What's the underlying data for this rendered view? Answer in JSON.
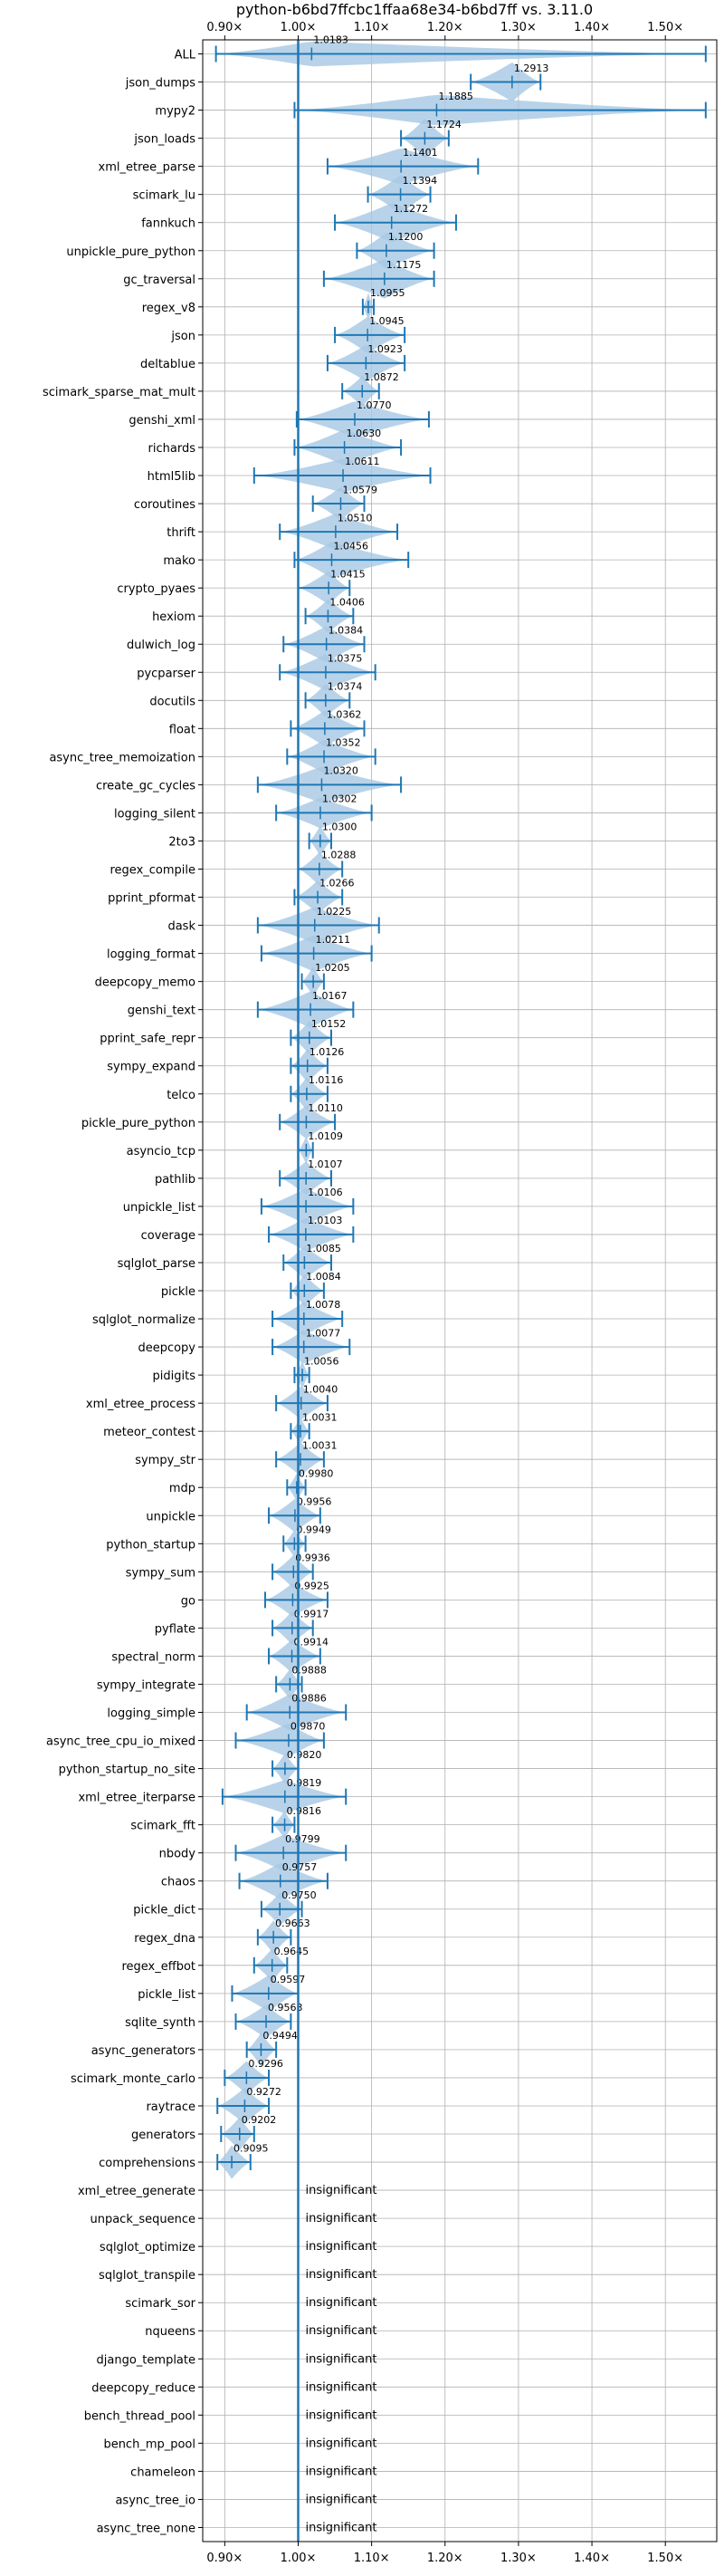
{
  "chart_data": {
    "type": "violin",
    "title": "python-b6bd7ffcbc1ffaa68e34-b6bd7ff vs. 3.11.0",
    "xlim": [
      0.87,
      1.57
    ],
    "x_ticks": [
      0.9,
      1.0,
      1.1,
      1.2,
      1.3,
      1.4,
      1.5
    ],
    "x_tick_labels": [
      "0.90×",
      "1.00×",
      "1.10×",
      "1.20×",
      "1.30×",
      "1.40×",
      "1.50×"
    ],
    "reference_line": 1.0,
    "grid": true,
    "colors": {
      "violin": "#a6c8e4",
      "line": "#1f77b4",
      "grid": "#b0b0b0",
      "reference": "#1f77b4"
    },
    "insignificant_label": "insignificant",
    "benchmarks": [
      {
        "name": "ALL",
        "value": 1.0183,
        "label": "1.0183",
        "min": 0.888,
        "max": 1.555,
        "width": 0.45
      },
      {
        "name": "json_dumps",
        "value": 1.2913,
        "label": "1.2913",
        "min": 1.235,
        "max": 1.33,
        "width": 0.7
      },
      {
        "name": "mypy2",
        "value": 1.1885,
        "label": "1.1885",
        "min": 0.995,
        "max": 1.555,
        "width": 0.55
      },
      {
        "name": "json_loads",
        "value": 1.1724,
        "label": "1.1724",
        "min": 1.14,
        "max": 1.205,
        "width": 0.7
      },
      {
        "name": "xml_etree_parse",
        "value": 1.1401,
        "label": "1.1401",
        "min": 1.04,
        "max": 1.245,
        "width": 0.65
      },
      {
        "name": "scimark_lu",
        "value": 1.1394,
        "label": "1.1394",
        "min": 1.095,
        "max": 1.18,
        "width": 0.7
      },
      {
        "name": "fannkuch",
        "value": 1.1272,
        "label": "1.1272",
        "min": 1.05,
        "max": 1.215,
        "width": 0.7
      },
      {
        "name": "unpickle_pure_python",
        "value": 1.12,
        "label": "1.1200",
        "min": 1.08,
        "max": 1.185,
        "width": 0.65
      },
      {
        "name": "gc_traversal",
        "value": 1.1175,
        "label": "1.1175",
        "min": 1.035,
        "max": 1.185,
        "width": 0.7
      },
      {
        "name": "regex_v8",
        "value": 1.0955,
        "label": "1.0955",
        "min": 1.088,
        "max": 1.103,
        "width": 0.5
      },
      {
        "name": "json",
        "value": 1.0945,
        "label": "1.0945",
        "min": 1.05,
        "max": 1.145,
        "width": 0.65
      },
      {
        "name": "deltablue",
        "value": 1.0923,
        "label": "1.0923",
        "min": 1.04,
        "max": 1.145,
        "width": 0.65
      },
      {
        "name": "scimark_sparse_mat_mult",
        "value": 1.0872,
        "label": "1.0872",
        "min": 1.06,
        "max": 1.11,
        "width": 0.55
      },
      {
        "name": "genshi_xml",
        "value": 1.077,
        "label": "1.0770",
        "min": 0.998,
        "max": 1.178,
        "width": 0.65
      },
      {
        "name": "richards",
        "value": 1.063,
        "label": "1.0630",
        "min": 0.995,
        "max": 1.14,
        "width": 0.65
      },
      {
        "name": "html5lib",
        "value": 1.0611,
        "label": "1.0611",
        "min": 0.94,
        "max": 1.18,
        "width": 0.6
      },
      {
        "name": "coroutines",
        "value": 1.0579,
        "label": "1.0579",
        "min": 1.02,
        "max": 1.09,
        "width": 0.6
      },
      {
        "name": "thrift",
        "value": 1.051,
        "label": "1.0510",
        "min": 0.975,
        "max": 1.135,
        "width": 0.65
      },
      {
        "name": "mako",
        "value": 1.0456,
        "label": "1.0456",
        "min": 0.995,
        "max": 1.15,
        "width": 0.65
      },
      {
        "name": "crypto_pyaes",
        "value": 1.0415,
        "label": "1.0415",
        "min": 1.0,
        "max": 1.07,
        "width": 0.6
      },
      {
        "name": "hexiom",
        "value": 1.0406,
        "label": "1.0406",
        "min": 1.01,
        "max": 1.075,
        "width": 0.6
      },
      {
        "name": "dulwich_log",
        "value": 1.0384,
        "label": "1.0384",
        "min": 0.98,
        "max": 1.09,
        "width": 0.65
      },
      {
        "name": "pycparser",
        "value": 1.0375,
        "label": "1.0375",
        "min": 0.975,
        "max": 1.105,
        "width": 0.65
      },
      {
        "name": "docutils",
        "value": 1.0374,
        "label": "1.0374",
        "min": 1.01,
        "max": 1.07,
        "width": 0.6
      },
      {
        "name": "float",
        "value": 1.0362,
        "label": "1.0362",
        "min": 0.99,
        "max": 1.09,
        "width": 0.65
      },
      {
        "name": "async_tree_memoization",
        "value": 1.0352,
        "label": "1.0352",
        "min": 0.985,
        "max": 1.105,
        "width": 0.6
      },
      {
        "name": "create_gc_cycles",
        "value": 1.032,
        "label": "1.0320",
        "min": 0.945,
        "max": 1.14,
        "width": 0.65
      },
      {
        "name": "logging_silent",
        "value": 1.0302,
        "label": "1.0302",
        "min": 0.97,
        "max": 1.1,
        "width": 0.55
      },
      {
        "name": "2to3",
        "value": 1.03,
        "label": "1.0300",
        "min": 1.015,
        "max": 1.045,
        "width": 0.55
      },
      {
        "name": "regex_compile",
        "value": 1.0288,
        "label": "1.0288",
        "min": 1.0,
        "max": 1.06,
        "width": 0.6
      },
      {
        "name": "pprint_pformat",
        "value": 1.0266,
        "label": "1.0266",
        "min": 0.995,
        "max": 1.06,
        "width": 0.6
      },
      {
        "name": "dask",
        "value": 1.0225,
        "label": "1.0225",
        "min": 0.945,
        "max": 1.11,
        "width": 0.65
      },
      {
        "name": "logging_format",
        "value": 1.0211,
        "label": "1.0211",
        "min": 0.95,
        "max": 1.1,
        "width": 0.65
      },
      {
        "name": "deepcopy_memo",
        "value": 1.0205,
        "label": "1.0205",
        "min": 1.005,
        "max": 1.035,
        "width": 0.55
      },
      {
        "name": "genshi_text",
        "value": 1.0167,
        "label": "1.0167",
        "min": 0.945,
        "max": 1.075,
        "width": 0.65
      },
      {
        "name": "pprint_safe_repr",
        "value": 1.0152,
        "label": "1.0152",
        "min": 0.99,
        "max": 1.045,
        "width": 0.6
      },
      {
        "name": "sympy_expand",
        "value": 1.0126,
        "label": "1.0126",
        "min": 0.99,
        "max": 1.04,
        "width": 0.6
      },
      {
        "name": "telco",
        "value": 1.0116,
        "label": "1.0116",
        "min": 0.99,
        "max": 1.04,
        "width": 0.6
      },
      {
        "name": "pickle_pure_python",
        "value": 1.011,
        "label": "1.0110",
        "min": 0.975,
        "max": 1.05,
        "width": 0.6
      },
      {
        "name": "asyncio_tcp",
        "value": 1.0109,
        "label": "1.0109",
        "min": 1.0,
        "max": 1.02,
        "width": 0.5
      },
      {
        "name": "pathlib",
        "value": 1.0107,
        "label": "1.0107",
        "min": 0.975,
        "max": 1.045,
        "width": 0.6
      },
      {
        "name": "unpickle_list",
        "value": 1.0106,
        "label": "1.0106",
        "min": 0.95,
        "max": 1.075,
        "width": 0.65
      },
      {
        "name": "coverage",
        "value": 1.0103,
        "label": "1.0103",
        "min": 0.96,
        "max": 1.075,
        "width": 0.6
      },
      {
        "name": "sqlglot_parse",
        "value": 1.0085,
        "label": "1.0085",
        "min": 0.98,
        "max": 1.045,
        "width": 0.6
      },
      {
        "name": "pickle",
        "value": 1.0084,
        "label": "1.0084",
        "min": 0.99,
        "max": 1.035,
        "width": 0.6
      },
      {
        "name": "sqlglot_normalize",
        "value": 1.0078,
        "label": "1.0078",
        "min": 0.965,
        "max": 1.06,
        "width": 0.6
      },
      {
        "name": "deepcopy",
        "value": 1.0077,
        "label": "1.0077",
        "min": 0.965,
        "max": 1.07,
        "width": 0.6
      },
      {
        "name": "pidigits",
        "value": 1.0056,
        "label": "1.0056",
        "min": 0.995,
        "max": 1.015,
        "width": 0.5
      },
      {
        "name": "xml_etree_process",
        "value": 1.004,
        "label": "1.0040",
        "min": 0.97,
        "max": 1.04,
        "width": 0.6
      },
      {
        "name": "meteor_contest",
        "value": 1.0031,
        "label": "1.0031",
        "min": 0.99,
        "max": 1.015,
        "width": 0.5
      },
      {
        "name": "sympy_str",
        "value": 1.0031,
        "label": "1.0031",
        "min": 0.97,
        "max": 1.035,
        "width": 0.6
      },
      {
        "name": "mdp",
        "value": 0.998,
        "label": "0.9980",
        "min": 0.985,
        "max": 1.01,
        "width": 0.5
      },
      {
        "name": "unpickle",
        "value": 0.9956,
        "label": "0.9956",
        "min": 0.96,
        "max": 1.03,
        "width": 0.6
      },
      {
        "name": "python_startup",
        "value": 0.9949,
        "label": "0.9949",
        "min": 0.98,
        "max": 1.01,
        "width": 0.5
      },
      {
        "name": "sympy_sum",
        "value": 0.9936,
        "label": "0.9936",
        "min": 0.965,
        "max": 1.02,
        "width": 0.6
      },
      {
        "name": "go",
        "value": 0.9925,
        "label": "0.9925",
        "min": 0.955,
        "max": 1.04,
        "width": 0.6
      },
      {
        "name": "pyflate",
        "value": 0.9917,
        "label": "0.9917",
        "min": 0.965,
        "max": 1.02,
        "width": 0.6
      },
      {
        "name": "spectral_norm",
        "value": 0.9914,
        "label": "0.9914",
        "min": 0.96,
        "max": 1.03,
        "width": 0.6
      },
      {
        "name": "sympy_integrate",
        "value": 0.9888,
        "label": "0.9888",
        "min": 0.97,
        "max": 1.005,
        "width": 0.55
      },
      {
        "name": "logging_simple",
        "value": 0.9886,
        "label": "0.9886",
        "min": 0.93,
        "max": 1.065,
        "width": 0.65
      },
      {
        "name": "async_tree_cpu_io_mixed",
        "value": 0.987,
        "label": "0.9870",
        "min": 0.915,
        "max": 1.035,
        "width": 0.6
      },
      {
        "name": "python_startup_no_site",
        "value": 0.982,
        "label": "0.9820",
        "min": 0.965,
        "max": 1.0,
        "width": 0.55
      },
      {
        "name": "xml_etree_iterparse",
        "value": 0.9819,
        "label": "0.9819",
        "min": 0.897,
        "max": 1.065,
        "width": 0.6
      },
      {
        "name": "scimark_fft",
        "value": 0.9816,
        "label": "0.9816",
        "min": 0.965,
        "max": 0.995,
        "width": 0.5
      },
      {
        "name": "nbody",
        "value": 0.9799,
        "label": "0.9799",
        "min": 0.915,
        "max": 1.065,
        "width": 0.65
      },
      {
        "name": "chaos",
        "value": 0.9757,
        "label": "0.9757",
        "min": 0.92,
        "max": 1.04,
        "width": 0.65
      },
      {
        "name": "pickle_dict",
        "value": 0.975,
        "label": "0.9750",
        "min": 0.95,
        "max": 1.005,
        "width": 0.6
      },
      {
        "name": "regex_dna",
        "value": 0.9663,
        "label": "0.9663",
        "min": 0.945,
        "max": 0.99,
        "width": 0.6
      },
      {
        "name": "regex_effbot",
        "value": 0.9645,
        "label": "0.9645",
        "min": 0.94,
        "max": 0.985,
        "width": 0.6
      },
      {
        "name": "pickle_list",
        "value": 0.9597,
        "label": "0.9597",
        "min": 0.91,
        "max": 1.0,
        "width": 0.65
      },
      {
        "name": "sqlite_synth",
        "value": 0.9563,
        "label": "0.9563",
        "min": 0.915,
        "max": 0.99,
        "width": 0.6
      },
      {
        "name": "async_generators",
        "value": 0.9494,
        "label": "0.9494",
        "min": 0.93,
        "max": 0.97,
        "width": 0.6
      },
      {
        "name": "scimark_monte_carlo",
        "value": 0.9296,
        "label": "0.9296",
        "min": 0.9,
        "max": 0.96,
        "width": 0.6
      },
      {
        "name": "raytrace",
        "value": 0.9272,
        "label": "0.9272",
        "min": 0.89,
        "max": 0.96,
        "width": 0.65
      },
      {
        "name": "generators",
        "value": 0.9202,
        "label": "0.9202",
        "min": 0.895,
        "max": 0.94,
        "width": 0.6
      },
      {
        "name": "comprehensions",
        "value": 0.9095,
        "label": "0.9095",
        "min": 0.89,
        "max": 0.935,
        "width": 0.6
      },
      {
        "name": "xml_etree_generate",
        "value": null,
        "label": "insignificant"
      },
      {
        "name": "unpack_sequence",
        "value": null,
        "label": "insignificant"
      },
      {
        "name": "sqlglot_optimize",
        "value": null,
        "label": "insignificant"
      },
      {
        "name": "sqlglot_transpile",
        "value": null,
        "label": "insignificant"
      },
      {
        "name": "scimark_sor",
        "value": null,
        "label": "insignificant"
      },
      {
        "name": "nqueens",
        "value": null,
        "label": "insignificant"
      },
      {
        "name": "django_template",
        "value": null,
        "label": "insignificant"
      },
      {
        "name": "deepcopy_reduce",
        "value": null,
        "label": "insignificant"
      },
      {
        "name": "bench_thread_pool",
        "value": null,
        "label": "insignificant"
      },
      {
        "name": "bench_mp_pool",
        "value": null,
        "label": "insignificant"
      },
      {
        "name": "chameleon",
        "value": null,
        "label": "insignificant"
      },
      {
        "name": "async_tree_io",
        "value": null,
        "label": "insignificant"
      },
      {
        "name": "async_tree_none",
        "value": null,
        "label": "insignificant"
      }
    ]
  }
}
